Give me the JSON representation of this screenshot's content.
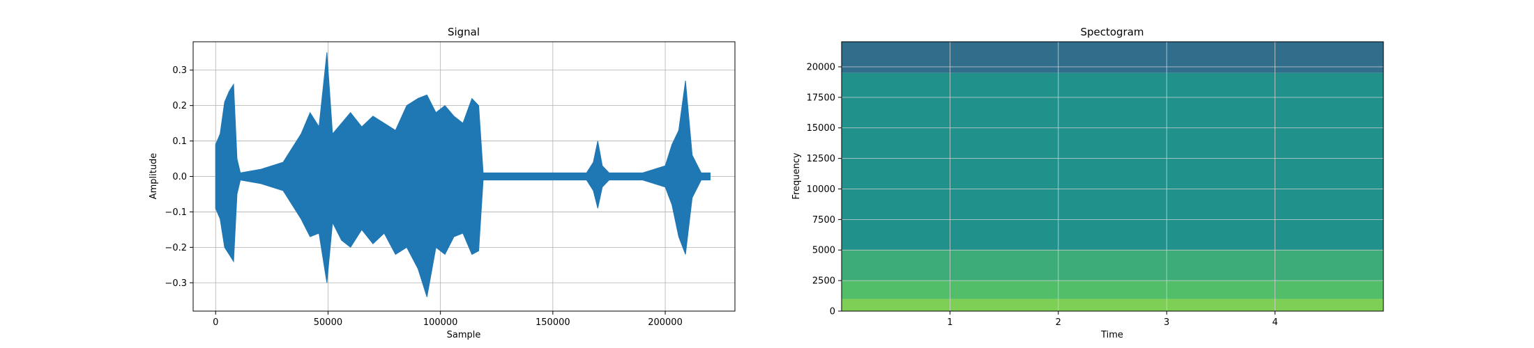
{
  "chart_data": [
    {
      "type": "line",
      "title": "Signal",
      "xlabel": "Sample",
      "ylabel": "Amplitude",
      "xlim": [
        -10000,
        231000
      ],
      "ylim": [
        -0.38,
        0.38
      ],
      "xticks": [
        0,
        50000,
        100000,
        150000,
        200000
      ],
      "xtick_labels": [
        "0",
        "50000",
        "100000",
        "150000",
        "200000"
      ],
      "yticks": [
        -0.3,
        -0.2,
        -0.1,
        0.0,
        0.1,
        0.2,
        0.3
      ],
      "ytick_labels": [
        "−0.3",
        "−0.2",
        "−0.1",
        "0.0",
        "0.1",
        "0.2",
        "0.3"
      ],
      "grid": true,
      "color": "#1f77b4",
      "series": [
        {
          "x": [
            0,
            2000,
            4000,
            6000,
            8000,
            9500,
            11000,
            20000,
            30000,
            38000,
            42000,
            46000,
            49500,
            52000,
            56000,
            60000,
            65000,
            70000,
            75000,
            80000,
            85000,
            90000,
            94000,
            98000,
            102000,
            106000,
            110000,
            114000,
            117000,
            119000,
            130000,
            150000,
            165000,
            168000,
            170000,
            172000,
            175000,
            190000,
            200000,
            203000,
            206000,
            209000,
            212000,
            216000,
            220000
          ],
          "y_max": [
            0.09,
            0.12,
            0.21,
            0.24,
            0.26,
            0.05,
            0.01,
            0.02,
            0.04,
            0.12,
            0.18,
            0.14,
            0.35,
            0.12,
            0.15,
            0.18,
            0.14,
            0.17,
            0.15,
            0.13,
            0.2,
            0.22,
            0.23,
            0.18,
            0.2,
            0.17,
            0.15,
            0.22,
            0.2,
            0.01,
            0.01,
            0.01,
            0.01,
            0.04,
            0.1,
            0.03,
            0.01,
            0.01,
            0.03,
            0.09,
            0.13,
            0.27,
            0.06,
            0.01,
            0.01
          ],
          "y_min": [
            -0.09,
            -0.12,
            -0.2,
            -0.22,
            -0.24,
            -0.05,
            -0.01,
            -0.02,
            -0.04,
            -0.12,
            -0.17,
            -0.16,
            -0.3,
            -0.13,
            -0.18,
            -0.2,
            -0.15,
            -0.19,
            -0.16,
            -0.22,
            -0.2,
            -0.26,
            -0.34,
            -0.2,
            -0.22,
            -0.17,
            -0.16,
            -0.22,
            -0.21,
            -0.01,
            -0.01,
            -0.01,
            -0.01,
            -0.04,
            -0.09,
            -0.03,
            -0.01,
            -0.01,
            -0.03,
            -0.08,
            -0.17,
            -0.22,
            -0.06,
            -0.01,
            -0.01
          ]
        }
      ]
    },
    {
      "type": "heatmap",
      "title": "Spectogram",
      "xlabel": "Time",
      "ylabel": "Frequency",
      "xlim": [
        0,
        5
      ],
      "ylim": [
        0,
        22050
      ],
      "xticks": [
        1,
        2,
        3,
        4
      ],
      "xtick_labels": [
        "1",
        "2",
        "3",
        "4"
      ],
      "yticks": [
        0,
        2500,
        5000,
        7500,
        10000,
        12500,
        15000,
        17500,
        20000
      ],
      "ytick_labels": [
        "0",
        "2500",
        "5000",
        "7500",
        "10000",
        "12500",
        "15000",
        "17500",
        "20000"
      ],
      "grid": true,
      "colormap": "viridis",
      "band_levels": [
        {
          "f_max": 1000,
          "level": 0.8
        },
        {
          "f_max": 2500,
          "level": 0.7
        },
        {
          "f_max": 5000,
          "level": 0.62
        },
        {
          "f_max": 19500,
          "level": 0.5
        },
        {
          "f_max": 22050,
          "level": 0.36
        }
      ]
    }
  ]
}
